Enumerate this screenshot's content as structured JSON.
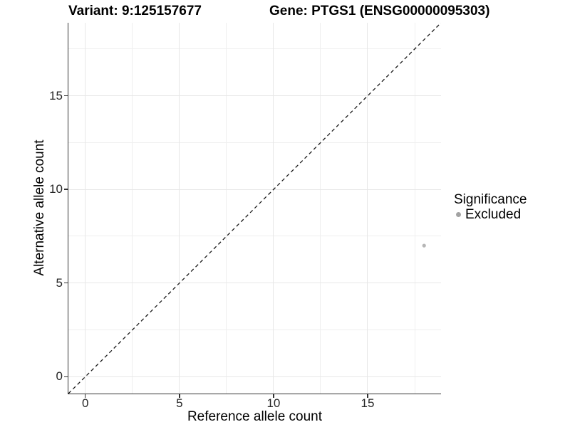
{
  "chart_data": {
    "type": "scatter",
    "title_left": "Variant: 9:125157677",
    "title_right": "Gene: PTGS1 (ENSG00000095303)",
    "xlabel": "Reference allele count",
    "ylabel": "Alternative allele count",
    "xlim": [
      -0.9,
      18.9
    ],
    "ylim": [
      -0.9,
      18.9
    ],
    "x_ticks": [
      0,
      5,
      10,
      15
    ],
    "y_ticks": [
      0,
      5,
      10,
      15
    ],
    "x_minor_gridlines": [
      2.5,
      7.5,
      12.5,
      17.5
    ],
    "y_minor_gridlines": [
      2.5,
      7.5,
      12.5,
      17.5
    ],
    "grid": "major and minor, light gray, white panel background",
    "points": [
      {
        "x": 18,
        "y": 7,
        "significance": "Excluded"
      }
    ],
    "identity_line": {
      "slope": 1,
      "intercept": 0,
      "style": "dashed"
    },
    "legend": {
      "title": "Significance",
      "position": "right",
      "entries": [
        {
          "label": "Excluded",
          "marker": "circle",
          "color": "#a3a3a3"
        }
      ]
    },
    "colors": {
      "point": "#b6b6b6",
      "legend_marker": "#a3a3a3",
      "grid_major": "#e7e7e7",
      "grid_minor": "#efefef",
      "axis_line": "#333333",
      "identity_line": "#1a1a1a"
    }
  }
}
